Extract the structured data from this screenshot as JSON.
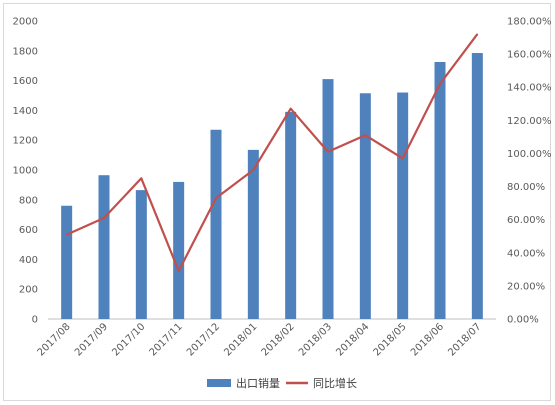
{
  "chart_data": {
    "type": "bar",
    "title": "",
    "categories": [
      "2017/08",
      "2017/09",
      "2017/10",
      "2017/11",
      "2017/12",
      "2018/01",
      "2018/02",
      "2018/03",
      "2018/04",
      "2018/05",
      "2018/06",
      "2018/07"
    ],
    "series": [
      {
        "name": "出口销量",
        "type": "bar",
        "axis": "left",
        "color": "#4f81bd",
        "values": [
          760,
          965,
          865,
          920,
          1270,
          1135,
          1390,
          1610,
          1515,
          1520,
          1725,
          1785
        ]
      },
      {
        "name": "同比增长",
        "type": "line",
        "axis": "right",
        "color": "#c0504d",
        "values": [
          0.51,
          0.61,
          0.85,
          0.29,
          0.73,
          0.9,
          1.27,
          1.01,
          1.11,
          0.97,
          1.42,
          1.72
        ]
      }
    ],
    "y_left": {
      "lim": [
        0,
        2000
      ],
      "ticks": [
        "0",
        "200",
        "400",
        "600",
        "800",
        "1000",
        "1200",
        "1400",
        "1600",
        "1800",
        "2000"
      ]
    },
    "y_right": {
      "lim": [
        0,
        1.8
      ],
      "ticks": [
        "0.00%",
        "20.00%",
        "40.00%",
        "60.00%",
        "80.00%",
        "100.00%",
        "120.00%",
        "140.00%",
        "160.00%",
        "180.00%"
      ]
    },
    "grid": false,
    "legend_position": "bottom"
  }
}
